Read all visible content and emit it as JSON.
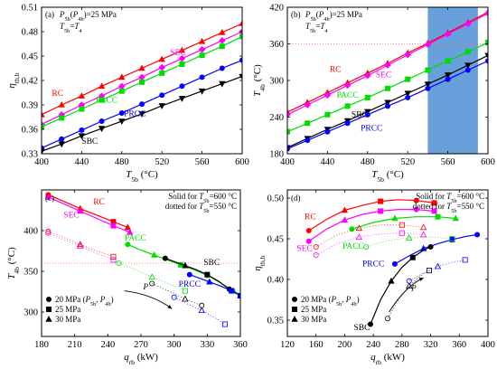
{
  "figure": {
    "colors": {
      "RC": "#ff0000",
      "SEC": "#ff00ff",
      "PACC": "#00dd00",
      "PRCC": "#0000ff",
      "SBC": "#000000",
      "band": "#4d8fd6"
    }
  },
  "chart_data": [
    {
      "panel": "a",
      "type": "line",
      "panel_label": "(a)",
      "annotations": [
        "P5b(P4b)=25 MPa",
        "T5b=T4"
      ],
      "xlabel": "T5b (°C)",
      "ylabel": "ηth,b",
      "xlim": [
        400,
        600
      ],
      "ylim": [
        0.33,
        0.51
      ],
      "xticks": [
        400,
        440,
        480,
        520,
        560,
        600
      ],
      "yticks": [
        0.33,
        0.36,
        0.39,
        0.42,
        0.45,
        0.48,
        0.51
      ],
      "ytick_labels": [
        "0.33",
        "0.36",
        "0.39",
        "0.42",
        "0.45",
        "0.48",
        "0.51"
      ],
      "series": [
        {
          "name": "RC",
          "marker": "triangle-up",
          "x": [
            400,
            420,
            440,
            460,
            480,
            500,
            520,
            540,
            560,
            580,
            600
          ],
          "y": [
            0.378,
            0.39,
            0.401,
            0.413,
            0.424,
            0.435,
            0.446,
            0.457,
            0.468,
            0.479,
            0.49
          ]
        },
        {
          "name": "SEC",
          "marker": "diamond",
          "x": [
            400,
            420,
            440,
            460,
            480,
            500,
            520,
            540,
            560,
            580,
            600
          ],
          "y": [
            0.366,
            0.378,
            0.39,
            0.401,
            0.413,
            0.424,
            0.436,
            0.447,
            0.458,
            0.469,
            0.48
          ]
        },
        {
          "name": "PACC",
          "marker": "square",
          "x": [
            400,
            420,
            440,
            460,
            480,
            500,
            520,
            540,
            560,
            580,
            600
          ],
          "y": [
            0.363,
            0.374,
            0.385,
            0.396,
            0.407,
            0.418,
            0.429,
            0.44,
            0.451,
            0.462,
            0.474
          ]
        },
        {
          "name": "PRCC",
          "marker": "circle",
          "x": [
            400,
            420,
            440,
            460,
            480,
            500,
            520,
            540,
            560,
            580,
            600
          ],
          "y": [
            0.337,
            0.348,
            0.359,
            0.37,
            0.38,
            0.391,
            0.402,
            0.413,
            0.424,
            0.435,
            0.445
          ]
        },
        {
          "name": "SBC",
          "marker": "triangle-down",
          "x": [
            400,
            420,
            440,
            460,
            480,
            500,
            520,
            540,
            560,
            580,
            600
          ],
          "y": [
            0.333,
            0.342,
            0.352,
            0.361,
            0.37,
            0.379,
            0.389,
            0.398,
            0.407,
            0.416,
            0.425
          ]
        }
      ],
      "labels": [
        {
          "text": "RC",
          "x": 416,
          "y": 0.401,
          "series": "RC"
        },
        {
          "text": "SEC",
          "x": 536,
          "y": 0.451,
          "series": "SEC"
        },
        {
          "text": "PACC",
          "x": 465,
          "y": 0.393,
          "series": "PACC"
        },
        {
          "text": "PRCC",
          "x": 493,
          "y": 0.376,
          "series": "PRCC"
        },
        {
          "text": "SBC",
          "x": 448,
          "y": 0.342,
          "series": "SBC"
        }
      ]
    },
    {
      "panel": "b",
      "type": "line",
      "panel_label": "(b)",
      "annotations": [
        "P5b(P4b)=25 MPa",
        "T5b=T4"
      ],
      "xlabel": "T5b (°C)",
      "ylabel": "T4b (°C)",
      "xlim": [
        400,
        600
      ],
      "ylim": [
        180,
        420
      ],
      "xticks": [
        400,
        440,
        480,
        520,
        560,
        600
      ],
      "yticks": [
        180,
        240,
        300,
        360,
        420
      ],
      "band": {
        "x_from": 540,
        "x_to": 590
      },
      "reference_line": {
        "y": 360
      },
      "series": [
        {
          "name": "RC",
          "marker": "triangle-up",
          "x": [
            400,
            420,
            440,
            460,
            480,
            500,
            520,
            540,
            560,
            580,
            600
          ],
          "y": [
            248,
            264,
            280,
            296,
            312,
            328,
            345,
            361,
            378,
            395,
            412
          ]
        },
        {
          "name": "SEC",
          "marker": "diamond",
          "x": [
            400,
            420,
            440,
            460,
            480,
            500,
            520,
            540,
            560,
            580,
            600
          ],
          "y": [
            244,
            260,
            276,
            292,
            308,
            325,
            342,
            359,
            376,
            393,
            410
          ]
        },
        {
          "name": "PACC",
          "marker": "square",
          "x": [
            400,
            420,
            440,
            460,
            480,
            500,
            520,
            540,
            560,
            580,
            600
          ],
          "y": [
            216,
            230,
            244,
            258,
            272,
            287,
            302,
            317,
            332,
            347,
            362
          ]
        },
        {
          "name": "SBC",
          "marker": "triangle-down",
          "x": [
            400,
            420,
            440,
            460,
            480,
            500,
            520,
            540,
            560,
            580,
            600
          ],
          "y": [
            190,
            205,
            220,
            234,
            249,
            264,
            279,
            294,
            309,
            325,
            341
          ]
        },
        {
          "name": "PRCC",
          "marker": "circle",
          "x": [
            400,
            420,
            440,
            460,
            480,
            500,
            520,
            540,
            560,
            580,
            600
          ],
          "y": [
            188,
            202,
            216,
            230,
            244,
            258,
            272,
            287,
            302,
            317,
            332
          ]
        }
      ],
      "labels": [
        {
          "text": "RC",
          "x": 448,
          "y": 314,
          "series": "RC"
        },
        {
          "text": "SEC",
          "x": 496,
          "y": 305,
          "series": "SEC"
        },
        {
          "text": "PACC",
          "x": 460,
          "y": 272,
          "series": "PACC"
        },
        {
          "text": "SBC",
          "x": 472,
          "y": 240,
          "series": "SBC"
        },
        {
          "text": "PRCC",
          "x": 484,
          "y": 218,
          "series": "PRCC"
        }
      ]
    },
    {
      "panel": "c",
      "type": "line",
      "panel_label": "(c)",
      "annotations": [
        "Solid for T5b=600 °C",
        "dotted for T5b=550 °C"
      ],
      "xlabel": "qrb (kW)",
      "ylabel": "T4b (°C)",
      "xlim": [
        180,
        360
      ],
      "ylim": [
        270,
        450
      ],
      "xticks": [
        180,
        210,
        240,
        270,
        300,
        330,
        360
      ],
      "yticks": [
        300,
        350,
        400
      ],
      "reference_line": {
        "y": 360
      },
      "legend": [
        {
          "marker": "circle",
          "text": "20 MPa (P5b, P4b)"
        },
        {
          "marker": "square",
          "text": "25 MPa"
        },
        {
          "marker": "triangle-up",
          "text": "30 MPa"
        }
      ],
      "pressure_arrow_label": "P",
      "series": [
        {
          "name": "RC",
          "style": "solid",
          "x": [
            186,
            200,
            215,
            230,
            245,
            258
          ],
          "y": [
            444,
            436,
            427,
            419,
            411,
            404
          ]
        },
        {
          "name": "SEC",
          "style": "solid",
          "x": [
            186,
            200,
            215,
            230,
            245,
            260
          ],
          "y": [
            441,
            433,
            424,
            415,
            406,
            398
          ]
        },
        {
          "name": "PACC",
          "style": "solid",
          "x": [
            258,
            270,
            282,
            294,
            306,
            318,
            330,
            342,
            354,
            360
          ],
          "y": [
            383,
            376,
            370,
            364,
            358,
            352,
            345,
            336,
            326,
            320
          ]
        },
        {
          "name": "SBC",
          "style": "solid",
          "x": [
            292,
            300,
            310,
            320,
            330,
            340,
            350,
            360
          ],
          "y": [
            366,
            362,
            357,
            352,
            346,
            338,
            328,
            320
          ]
        },
        {
          "name": "PRCC",
          "style": "solid",
          "x": [
            314,
            322,
            332,
            342,
            352,
            360
          ],
          "y": [
            346,
            342,
            337,
            332,
            326,
            320
          ]
        },
        {
          "name": "SEC",
          "style": "dotted",
          "x": [
            186,
            200,
            215,
            230,
            245
          ],
          "y": [
            397,
            389,
            381,
            372,
            364
          ]
        },
        {
          "name": "RC",
          "style": "dotted",
          "x": [
            186,
            200,
            215,
            230,
            245
          ],
          "y": [
            399,
            392,
            383,
            375,
            368
          ]
        },
        {
          "name": "PACC",
          "style": "dotted",
          "x": [
            250,
            265,
            280,
            295,
            310
          ],
          "y": [
            360,
            352,
            343,
            335,
            326
          ]
        },
        {
          "name": "SBC",
          "style": "dotted",
          "x": [
            280,
            295,
            310,
            325
          ],
          "y": [
            335,
            326,
            316,
            308
          ]
        },
        {
          "name": "PRCC",
          "style": "dotted",
          "x": [
            300,
            312,
            325,
            338,
            346
          ],
          "y": [
            318,
            310,
            302,
            292,
            285
          ]
        }
      ],
      "labels": [
        {
          "text": "RC",
          "x": 232,
          "y": 432,
          "series": "RC"
        },
        {
          "text": "SEC",
          "x": 207,
          "y": 416,
          "series": "SEC"
        },
        {
          "text": "PACC",
          "x": 265,
          "y": 388,
          "series": "PACC"
        },
        {
          "text": "SBC",
          "x": 334,
          "y": 358,
          "series": "SBC"
        },
        {
          "text": "PRCC",
          "x": 314,
          "y": 331,
          "series": "PRCC"
        }
      ]
    },
    {
      "panel": "d",
      "type": "line",
      "panel_label": "(d)",
      "annotations": [
        "Solid for T5b=600 °C",
        "dotted for T5b=550 °C"
      ],
      "xlabel": "qrb (kW)",
      "ylabel": "ηth,b",
      "xlim": [
        120,
        400
      ],
      "ylim": [
        0.33,
        0.51
      ],
      "xticks": [
        120,
        160,
        200,
        240,
        280,
        320,
        360,
        400
      ],
      "yticks": [
        0.35,
        0.4,
        0.45,
        0.5
      ],
      "ytick_labels": [
        "0.35",
        "0.40",
        "0.45",
        "0.50"
      ],
      "legend": [
        {
          "marker": "circle",
          "text": "20 MPa (P5b, P4b)"
        },
        {
          "marker": "square",
          "text": "25 MPa"
        },
        {
          "marker": "triangle-up",
          "text": "30 MPa"
        }
      ],
      "pressure_arrow_label": "P",
      "series": [
        {
          "name": "RC",
          "style": "solid",
          "x": [
            150,
            175,
            200,
            225,
            250,
            275,
            300,
            325
          ],
          "y": [
            0.46,
            0.474,
            0.485,
            0.491,
            0.496,
            0.498,
            0.497,
            0.494
          ]
        },
        {
          "name": "SEC",
          "style": "solid",
          "x": [
            150,
            175,
            200,
            225,
            250,
            275,
            300,
            325
          ],
          "y": [
            0.447,
            0.462,
            0.473,
            0.48,
            0.484,
            0.486,
            0.486,
            0.484
          ]
        },
        {
          "name": "PACC",
          "style": "solid",
          "x": [
            210,
            240,
            270,
            300,
            330,
            355
          ],
          "y": [
            0.462,
            0.47,
            0.475,
            0.477,
            0.477,
            0.475
          ]
        },
        {
          "name": "PRCC",
          "style": "solid",
          "x": [
            270,
            290,
            310,
            330,
            350,
            370,
            385
          ],
          "y": [
            0.419,
            0.429,
            0.438,
            0.444,
            0.449,
            0.453,
            0.455
          ]
        },
        {
          "name": "SBC",
          "style": "solid",
          "x": [
            236,
            250,
            265,
            280,
            295,
            310,
            320
          ],
          "y": [
            0.345,
            0.375,
            0.398,
            0.415,
            0.427,
            0.436,
            0.44
          ]
        },
        {
          "name": "RC",
          "style": "dotted",
          "x": [
            160,
            190,
            220,
            250,
            280,
            310
          ],
          "y": [
            0.44,
            0.455,
            0.463,
            0.467,
            0.467,
            0.464
          ]
        },
        {
          "name": "SEC",
          "style": "dotted",
          "x": [
            160,
            190,
            220,
            250,
            280,
            310
          ],
          "y": [
            0.43,
            0.444,
            0.452,
            0.456,
            0.457,
            0.455
          ]
        },
        {
          "name": "PACC",
          "style": "dotted",
          "x": [
            230,
            260,
            290,
            320,
            350
          ],
          "y": [
            0.44,
            0.448,
            0.451,
            0.452,
            0.45
          ]
        },
        {
          "name": "PRCC",
          "style": "dotted",
          "x": [
            290,
            310,
            330,
            350,
            368
          ],
          "y": [
            0.398,
            0.408,
            0.416,
            0.421,
            0.424
          ]
        },
        {
          "name": "SBC",
          "style": "dotted",
          "x": [
            260,
            275,
            290,
            305,
            318
          ],
          "y": [
            0.352,
            0.375,
            0.392,
            0.404,
            0.411
          ]
        }
      ],
      "labels": [
        {
          "text": "RC",
          "x": 152,
          "y": 0.474,
          "series": "RC"
        },
        {
          "text": "SEC",
          "x": 144,
          "y": 0.435,
          "series": "SEC"
        },
        {
          "text": "PACC",
          "x": 212,
          "y": 0.438,
          "series": "PACC"
        },
        {
          "text": "PRCC",
          "x": 240,
          "y": 0.416,
          "series": "PRCC"
        },
        {
          "text": "SBC",
          "x": 224,
          "y": 0.338,
          "series": "SBC"
        }
      ]
    }
  ]
}
